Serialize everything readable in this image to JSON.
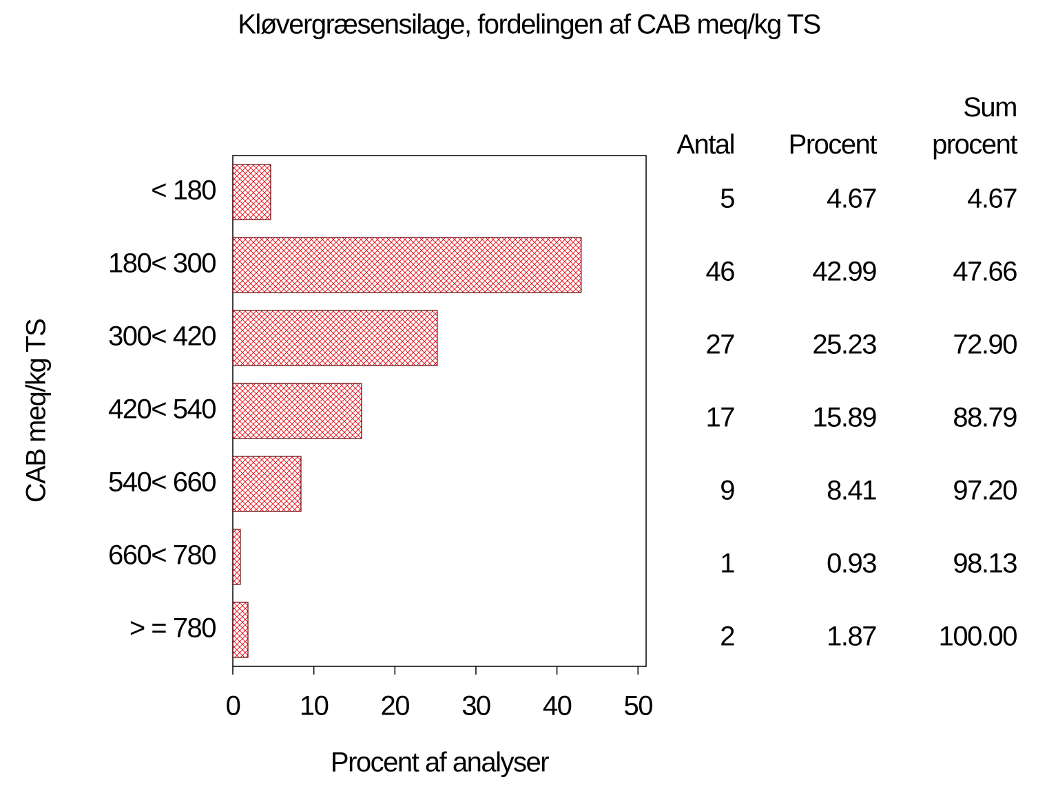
{
  "chart_data": {
    "type": "bar",
    "orientation": "horizontal",
    "title": "Kløvergræsensilage,  fordelingen  af  CAB  meq/kg  TS",
    "x_label": "Procent  af  analyser",
    "y_label": "CAB meq/kg TS",
    "categories": [
      "< 180",
      "180< 300",
      "300< 420",
      "420< 540",
      "540< 660",
      "660< 780",
      "> = 780"
    ],
    "values": [
      4.67,
      42.99,
      25.23,
      15.89,
      8.41,
      0.93,
      1.87
    ],
    "color": "#e8000b",
    "xlim": [
      0,
      51
    ],
    "xticks": [
      0,
      10,
      20,
      30,
      40,
      50
    ],
    "table": {
      "headers": [
        "Antal",
        "Procent",
        "Sum procent"
      ],
      "counts": [
        5,
        46,
        27,
        17,
        9,
        1,
        2
      ],
      "cumulative": [
        "4.67",
        "47.66",
        "72.90",
        "88.79",
        "97.20",
        "98.13",
        "100.00"
      ]
    }
  }
}
